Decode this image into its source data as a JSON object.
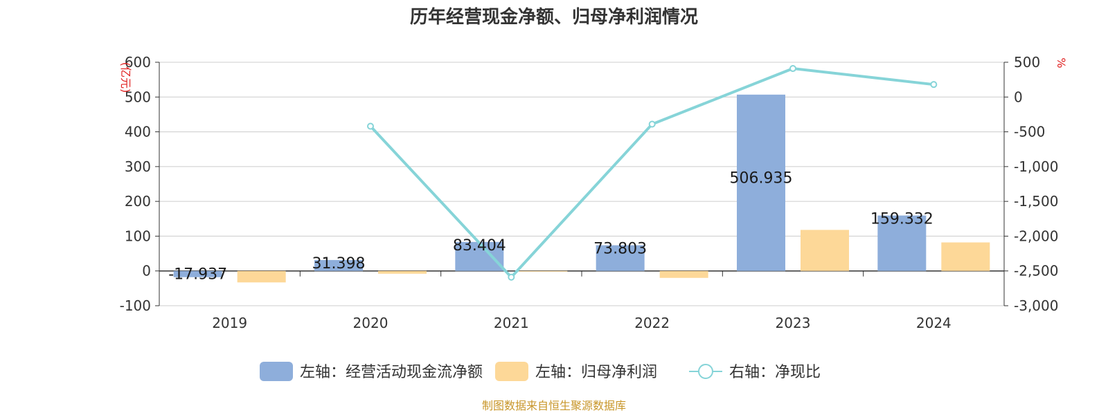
{
  "chart_data": {
    "type": "bar",
    "title": "历年经营现金净额、归母净利润情况",
    "categories": [
      "2019",
      "2020",
      "2021",
      "2022",
      "2023",
      "2024"
    ],
    "left_axis": {
      "unit": "(亿元)",
      "ylim": [
        -100,
        600
      ],
      "ticks": [
        "600",
        "500",
        "400",
        "300",
        "200",
        "100",
        "0",
        "-100"
      ]
    },
    "right_axis": {
      "unit": "%",
      "ylim": [
        -3000,
        500
      ],
      "ticks": [
        "500",
        "0",
        "-500",
        "-1,000",
        "-1,500",
        "-2,000",
        "-2,500",
        "-3,000"
      ]
    },
    "series": [
      {
        "name": "左轴：经营活动现金流净额",
        "type": "bar",
        "axis": "left",
        "color": "#8eaedb",
        "values": [
          -17.937,
          31.398,
          83.404,
          73.803,
          506.935,
          159.332
        ],
        "labels": [
          "-17.937",
          "31.398",
          "83.404",
          "73.803",
          "506.935",
          "159.332"
        ]
      },
      {
        "name": "左轴：归母净利润",
        "type": "bar",
        "axis": "left",
        "color": "#fdd898",
        "values": [
          -33,
          -8,
          -2,
          -20,
          118,
          82
        ]
      },
      {
        "name": "右轴：净现比",
        "type": "line",
        "axis": "right",
        "color": "#86d4d8",
        "values": [
          null,
          -420,
          -2590,
          -390,
          410,
          180
        ]
      }
    ],
    "grid": true,
    "legend_position": "bottom"
  },
  "footer": {
    "source": "制图数据来自恒生聚源数据库"
  }
}
